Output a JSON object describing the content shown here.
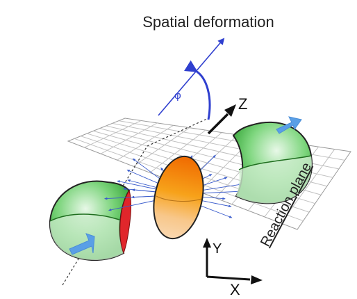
{
  "title": "Spatial deformation",
  "angle_label": "φ",
  "axis_labels": {
    "z": "Z",
    "y": "Y",
    "x": "X"
  },
  "plane_label": "Reaction plane",
  "colors": {
    "nucleus_green": "#3fb93f",
    "overlap_orange": "#f08a10",
    "angle_blue": "#2f3fcf",
    "flow_arrow_blue": "#5a9fe6",
    "grid_gray": "#b8b8b8",
    "emission_blue": "#3a5ccc",
    "edge_red": "#e0262b"
  }
}
